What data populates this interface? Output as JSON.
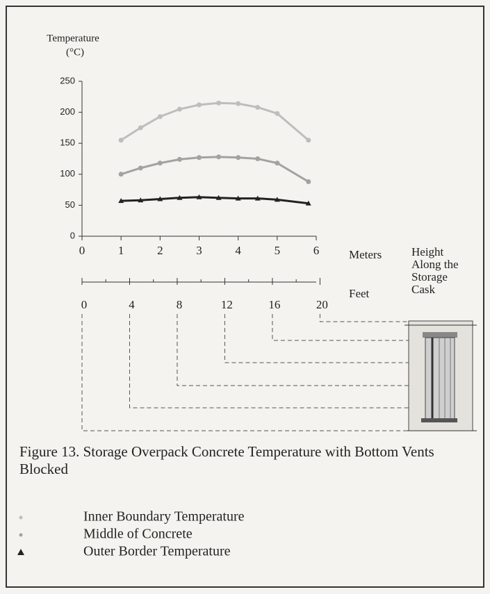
{
  "chart_data": {
    "type": "line",
    "ylabel": [
      "Temperature",
      "(°C)"
    ],
    "xlabel": "Meters",
    "x2label": "Feet",
    "side_label": [
      "Height",
      "Along the",
      "Storage",
      "Cask"
    ],
    "caption": "Figure 13.  Storage Overpack Concrete Temperature with Bottom Vents Blocked",
    "x": [
      1,
      1.5,
      2,
      2.5,
      3,
      3.5,
      4,
      4.5,
      5,
      5.8
    ],
    "series": [
      {
        "name": "Inner Boundary Temperature",
        "color": "#bdbdbd",
        "marker": "circle",
        "values": [
          155,
          175,
          193,
          205,
          212,
          215,
          214,
          208,
          198,
          155
        ]
      },
      {
        "name": "Middle of Concrete",
        "color": "#a2a2a2",
        "marker": "circle",
        "values": [
          100,
          110,
          118,
          124,
          127,
          128,
          127,
          125,
          118,
          88
        ]
      },
      {
        "name": "Outer Border Temperature",
        "color": "#222222",
        "marker": "triangle",
        "values": [
          57,
          58,
          60,
          62,
          63,
          62,
          61,
          61,
          59,
          53
        ]
      }
    ],
    "xlim": [
      0,
      6
    ],
    "xticks": [
      0,
      1,
      2,
      3,
      4,
      5,
      6
    ],
    "x2lim": [
      0,
      19.685
    ],
    "x2ticks": [
      0,
      4,
      8,
      12,
      16,
      20
    ],
    "x2minorticks": [
      2,
      6,
      10,
      14,
      18
    ],
    "ylim": [
      0,
      250
    ],
    "yticks": [
      0,
      50,
      100,
      150,
      200,
      250
    ]
  }
}
